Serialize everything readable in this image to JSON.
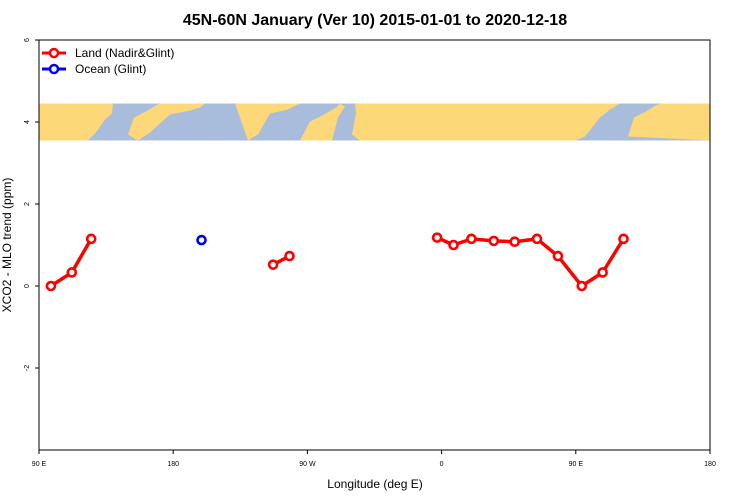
{
  "chart_data": {
    "type": "line",
    "title": "45N-60N January (Ver 10)   2015-01-01 to 2020-12-18",
    "xlabel": "Longitude (deg E)",
    "ylabel": "XCO2 - MLO trend (ppm)",
    "xlim": [
      90,
      450
    ],
    "ylim": [
      -4,
      6
    ],
    "x_ticks": [
      {
        "value": 90,
        "label": "90 E"
      },
      {
        "value": 180,
        "label": "180"
      },
      {
        "value": 270,
        "label": "90 W"
      },
      {
        "value": 360,
        "label": "0"
      },
      {
        "value": 450,
        "label": "90 E"
      }
    ],
    "x_ticks_end": {
      "value": 540,
      "label": "180"
    },
    "y_ticks": [
      {
        "value": -2,
        "label": "-2"
      },
      {
        "value": 0,
        "label": "0"
      },
      {
        "value": 2,
        "label": "2"
      },
      {
        "value": 4,
        "label": "4"
      },
      {
        "value": 6,
        "label": "6"
      }
    ],
    "map_band": {
      "ylim": [
        3.55,
        4.45
      ],
      "land_color": "#fdd879",
      "ocean_color": "#a8bcdc"
    },
    "legend": {
      "position": "top-left"
    },
    "series": [
      {
        "name": "Land (Nadir&Glint)",
        "color": "#ff0000",
        "segments": [
          [
            {
              "x": 98,
              "y": 0.0
            },
            {
              "x": 112,
              "y": 0.33
            },
            {
              "x": 125,
              "y": 1.15
            }
          ],
          [
            {
              "x": 247,
              "y": 0.52
            },
            {
              "x": 258,
              "y": 0.73
            }
          ],
          [
            {
              "x": 357,
              "y": 1.18
            },
            {
              "x": 368,
              "y": 1.0
            },
            {
              "x": 380,
              "y": 1.15
            },
            {
              "x": 395,
              "y": 1.1
            },
            {
              "x": 409,
              "y": 1.08
            },
            {
              "x": 424,
              "y": 1.15
            },
            {
              "x": 438,
              "y": 0.73
            },
            {
              "x": 454,
              "y": 0.0
            },
            {
              "x": 468,
              "y": 0.33
            },
            {
              "x": 482,
              "y": 1.15
            }
          ]
        ]
      },
      {
        "name": "Ocean (Glint)",
        "color": "#0000ff",
        "segments": [
          [
            {
              "x": 199,
              "y": 1.12
            }
          ]
        ]
      }
    ]
  }
}
